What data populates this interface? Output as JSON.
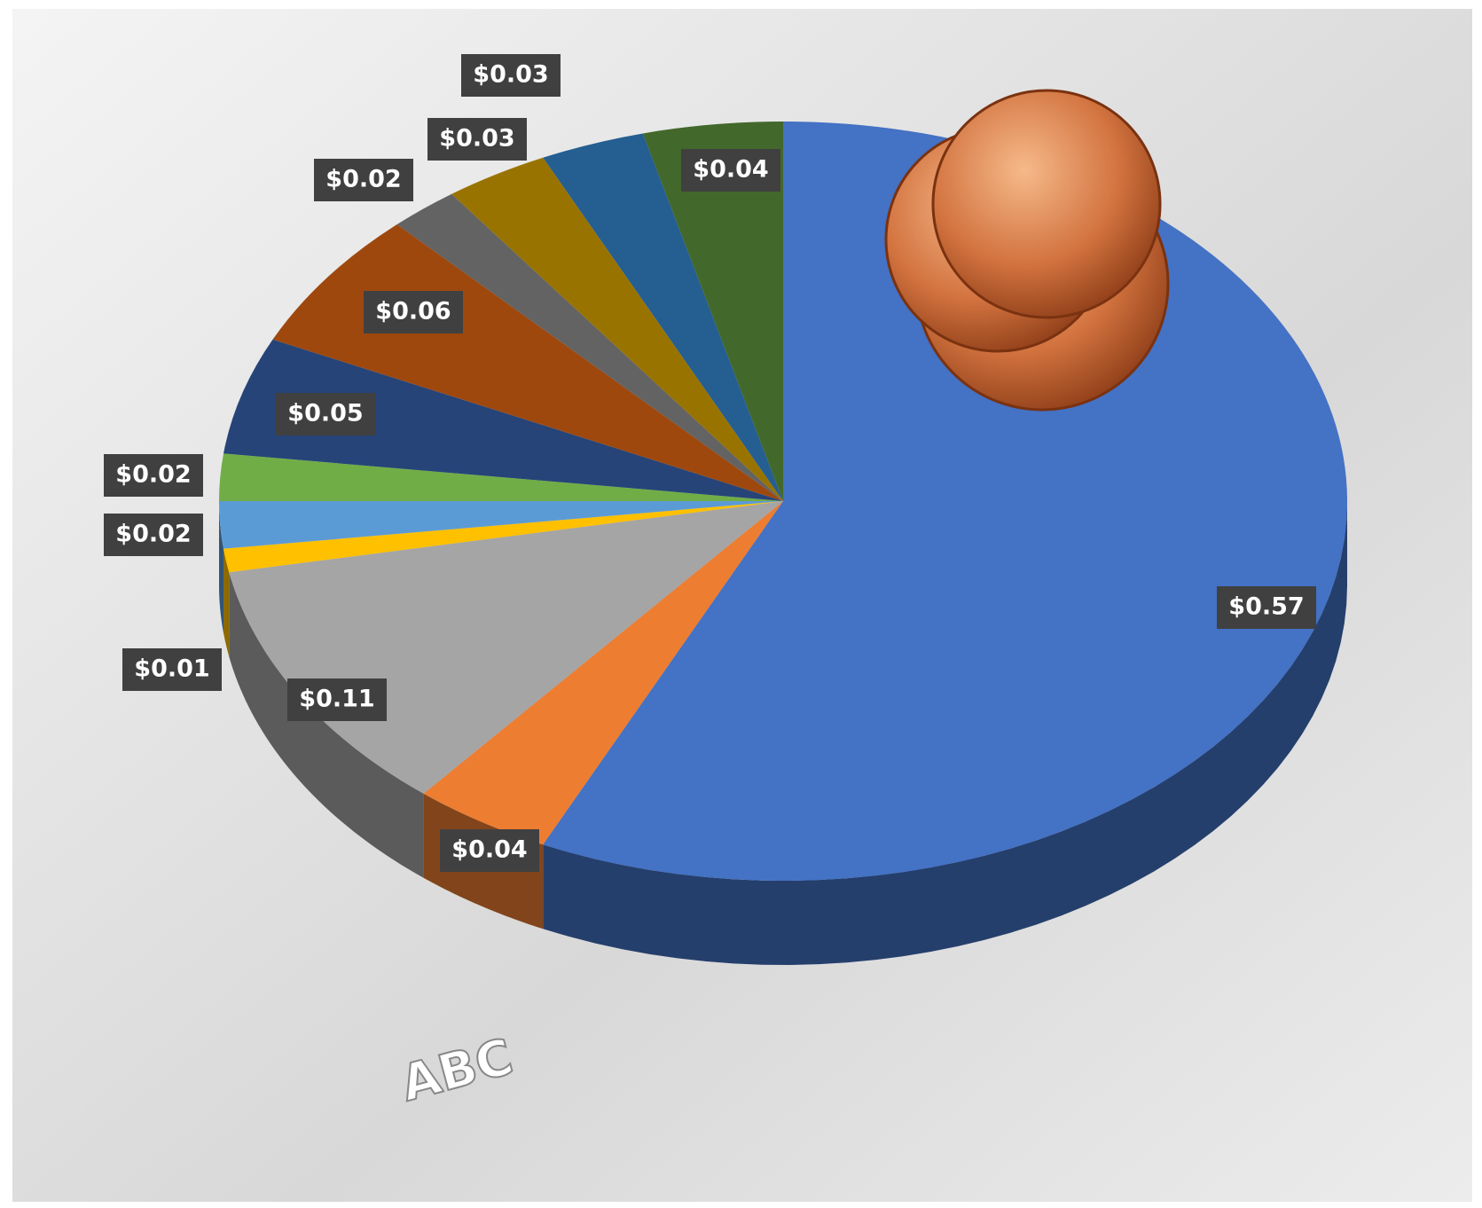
{
  "chart_data": {
    "type": "pie",
    "categories": [
      null,
      null,
      null,
      null,
      null,
      null,
      null,
      null,
      null,
      null,
      null,
      null
    ],
    "values": [
      0.57,
      0.04,
      0.11,
      0.01,
      0.02,
      0.02,
      0.05,
      0.06,
      0.02,
      0.03,
      0.03,
      0.04
    ],
    "value_labels": [
      "$0.57",
      "$0.04",
      "$0.11",
      "$0.01",
      "$0.02",
      "$0.02",
      "$0.05",
      "$0.06",
      "$0.02",
      "$0.03",
      "$0.03",
      "$0.04"
    ],
    "colors": [
      "#4472c4",
      "#ed7d31",
      "#a5a5a5",
      "#ffc000",
      "#5b9bd5",
      "#70ad47",
      "#264478",
      "#9e480e",
      "#636363",
      "#997300",
      "#255e91",
      "#43682b"
    ],
    "annotation": "ABC"
  }
}
